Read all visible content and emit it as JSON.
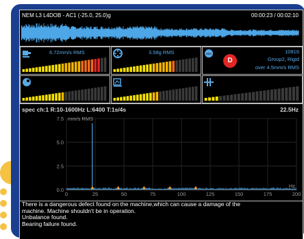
{
  "header": {
    "title": "NEM L3 L4DOB - AC1 (-25.0, 25.0)g",
    "time": "00:00:23 / 00:02:10"
  },
  "panels": [
    {
      "text": "6.72mm/s RMS",
      "level": 0.95,
      "icon": "motor-icon"
    },
    {
      "text": "3.58g RMS",
      "level": 0.72,
      "icon": "bearing-icon"
    },
    {
      "text": "10816",
      "sub": "Group2, Rigid",
      "sub2": "over 4.5mm/s RMS",
      "badge": "D",
      "icon": "iso-icon"
    },
    {
      "level": 0.5,
      "icon": "unbalance-icon"
    },
    {
      "level": 0.55,
      "icon": "gauge-icon"
    },
    {
      "level": 0.15,
      "icon": "misalignment-icon"
    }
  ],
  "spectrum": {
    "header": "spec ch:1 R:10-1600Hz L:6400 T:1s/4s",
    "freq": "22.5Hz",
    "unit": "mm/s RMS",
    "x_unit": "Hz",
    "x_ticks": [
      "0",
      "25",
      "50",
      "75",
      "100",
      "125",
      "150",
      "175",
      "200"
    ],
    "y_ticks": [
      "7.5",
      "5.0",
      "2.5",
      "0.0"
    ]
  },
  "chart_data": {
    "type": "line",
    "xlim": [
      0,
      200
    ],
    "ylim": [
      0,
      7.5
    ],
    "ylabel": "mm/s RMS",
    "xlabel": "Hz",
    "peaks": [
      {
        "x": 22.5,
        "y": 7.0
      },
      {
        "x": 45,
        "y": 0.35
      },
      {
        "x": 67.5,
        "y": 0.3
      },
      {
        "x": 90,
        "y": 0.2
      },
      {
        "x": 112.5,
        "y": 0.15
      }
    ],
    "markers_x": [
      22.5,
      45,
      67.5,
      90,
      112.5
    ]
  },
  "message": {
    "lines": [
      "There is a dangerous defect found on the machine,which can cause a damage of the",
      "machine. Machine shouldn't be in operation.",
      "Unbalance found.",
      "Bearing failure found."
    ]
  },
  "colors": {
    "frame": "#1b3f8f",
    "accent": "#5aa9e6",
    "badge": "#e22525",
    "deco": "#f5c242"
  }
}
